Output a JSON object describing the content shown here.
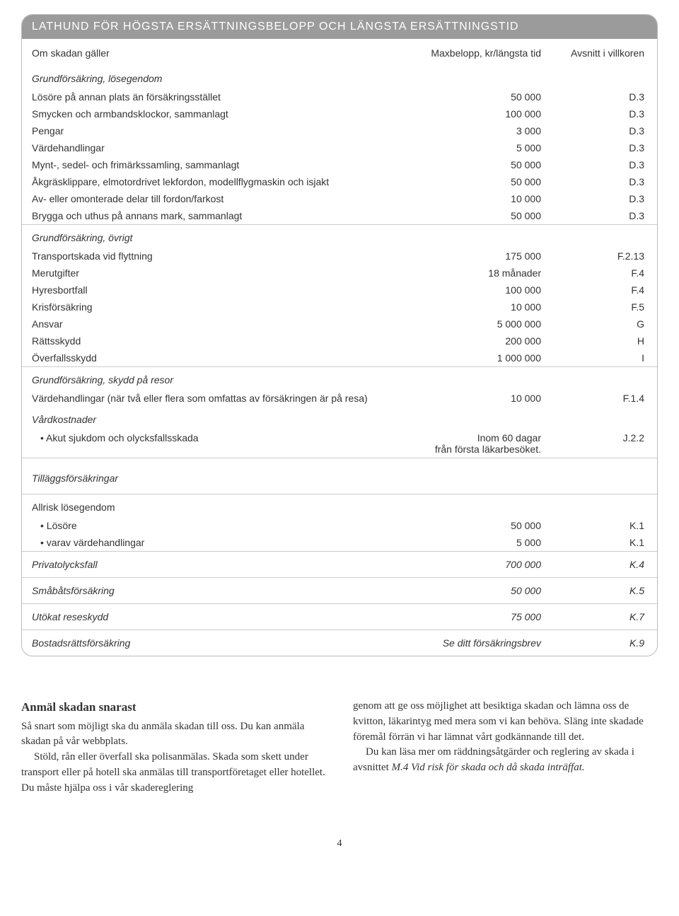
{
  "table": {
    "title": "LATHUND FÖR HÖGSTA ERSÄTTNINGSBELOPP OCH LÄNGSTA ERSÄTTNINGSTID",
    "headers": {
      "c1": "Om skadan gäller",
      "c2": "Maxbelopp, kr/längsta tid",
      "c3": "Avsnitt i villkoren"
    },
    "sections": [
      {
        "heading": "Grundförsäkring, lösegendom",
        "border": false,
        "rows": [
          {
            "label": "Lösöre på annan plats än försäkringsstället",
            "value": "50 000",
            "ref": "D.3"
          },
          {
            "label": "Smycken och armbandsklockor, sammanlagt",
            "value": "100 000",
            "ref": "D.3"
          },
          {
            "label": "Pengar",
            "value": "3 000",
            "ref": "D.3"
          },
          {
            "label": "Värdehandlingar",
            "value": "5 000",
            "ref": "D.3"
          },
          {
            "label": "Mynt-, sedel- och frimärkssamling, sammanlagt",
            "value": "50 000",
            "ref": "D.3"
          },
          {
            "label": "Åkgräsklippare, elmotordrivet lekfordon, modellflygmaskin och isjakt",
            "value": "50 000",
            "ref": "D.3"
          },
          {
            "label": "Av- eller omonterade delar till fordon/farkost",
            "value": "10 000",
            "ref": "D.3"
          },
          {
            "label": "Brygga och uthus på annans mark, sammanlagt",
            "value": "50 000",
            "ref": "D.3"
          }
        ]
      },
      {
        "heading": "Grundförsäkring, övrigt",
        "border": true,
        "rows": [
          {
            "label": "Transportskada vid flyttning",
            "value": "175 000",
            "ref": "F.2.13"
          },
          {
            "label": "Merutgifter",
            "value": "18 månader",
            "ref": "F.4"
          },
          {
            "label": "Hyresbortfall",
            "value": "100 000",
            "ref": "F.4"
          },
          {
            "label": "Krisförsäkring",
            "value": "10 000",
            "ref": "F.5"
          },
          {
            "label": "Ansvar",
            "value": "5 000 000",
            "ref": "G"
          },
          {
            "label": "Rättsskydd",
            "value": "200 000",
            "ref": "H"
          },
          {
            "label": "Överfallsskydd",
            "value": "1 000 000",
            "ref": "I"
          }
        ]
      },
      {
        "heading": "Grundförsäkring, skydd på resor",
        "border": true,
        "rows": [
          {
            "label": "Värdehandlingar (när två eller flera som omfattas av försäkringen är på resa)",
            "value": "10 000",
            "ref": "F.1.4"
          }
        ]
      },
      {
        "heading": "Vårdkostnader",
        "border": false,
        "rows": [
          {
            "label": "Akut sjukdom och olycksfallsskada",
            "bullet": true,
            "value": "Inom 60 dagar\nfrån första läkarbesöket.",
            "ref": "J.2.2"
          }
        ]
      },
      {
        "heading": "Tilläggsförsäkringar",
        "border": true,
        "toppad": true,
        "rows": []
      },
      {
        "heading": "Allrisk lösegendom",
        "border": true,
        "plain": true,
        "rows": [
          {
            "label": "Lösöre",
            "bullet": true,
            "value": "50 000",
            "ref": "K.1"
          },
          {
            "label": "varav värdehandlingar",
            "bullet": true,
            "value": "5 000",
            "ref": "K.1"
          }
        ]
      },
      {
        "heading": "",
        "border": true,
        "nohead": true,
        "rows": [
          {
            "label": "Privatolycksfall",
            "value": "700 000",
            "ref": "K.4"
          }
        ]
      },
      {
        "heading": "",
        "border": true,
        "nohead": true,
        "rows": [
          {
            "label": "Småbåtsförsäkring",
            "value": "50 000",
            "ref": "K.5"
          }
        ]
      },
      {
        "heading": "",
        "border": true,
        "nohead": true,
        "rows": [
          {
            "label": "Utökat reseskydd",
            "value": "75 000",
            "ref": "K.7"
          }
        ]
      },
      {
        "heading": "",
        "border": true,
        "nohead": true,
        "rows": [
          {
            "label": "Bostadsrättsförsäkring",
            "value": "Se ditt försäkringsbrev",
            "ref": "K.9"
          }
        ]
      }
    ]
  },
  "below": {
    "heading": "Anmäl skadan snarast",
    "left_p1": "Så snart som möjligt ska du anmäla skadan till oss. Du kan anmäla skadan på vår webbplats.",
    "left_p2": "Stöld, rån eller överfall ska polisanmälas. Skada som skett under transport eller på hotell ska anmälas till transportföretaget eller hotellet. Du måste hjälpa oss i vår skadereglering",
    "right_p1": "genom att ge oss möjlighet att besiktiga skadan och lämna oss de kvitton, läkarintyg med mera som vi kan behöva. Släng inte skadade föremål förrän vi har lämnat vårt godkännande till det.",
    "right_p2_a": "Du kan läsa mer om räddningsåtgärder och reglering av skada i avsnittet ",
    "right_p2_b": "M.4 Vid risk för skada och då skada inträffat."
  },
  "page": "4"
}
